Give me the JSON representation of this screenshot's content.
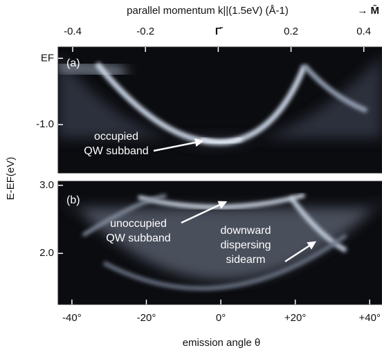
{
  "chart_data": [
    {
      "type": "image",
      "panel_label": "(a)",
      "x2label": "parallel momentum k||(1.5eV)  (Å-1)",
      "x2_direction": "→ M̄",
      "x2lim": [
        -0.44,
        0.45
      ],
      "x2ticks": [
        -0.4,
        -0.2,
        {
          "value": 0,
          "label": "Γ̄"
        },
        0.2,
        0.4
      ],
      "ylabel": "E-EF(eV)",
      "ylim": [
        -1.73,
        0.17
      ],
      "yticks": [
        {
          "value": 0,
          "label": "EF"
        },
        {
          "value": -1,
          "label": "-1.0"
        }
      ],
      "annotations": [
        [
          "occupied",
          "QW subband"
        ]
      ]
    },
    {
      "type": "image",
      "panel_label": "(b)",
      "xlabel": "emission angle θ",
      "xlim": [
        -43.7,
        43.3
      ],
      "xticks": [
        {
          "value": -40,
          "label": "-40°"
        },
        {
          "value": -20,
          "label": "-20°"
        },
        {
          "value": 0,
          "label": "0°"
        },
        {
          "value": 20,
          "label": "+20°"
        },
        {
          "value": 40,
          "label": "+40°"
        }
      ],
      "ylim": [
        1.25,
        3.06
      ],
      "yticks": [
        {
          "value": 3,
          "label": "3.0"
        },
        {
          "value": 2,
          "label": "2.0"
        }
      ],
      "annotations": [
        [
          "unoccupied",
          "QW subband"
        ],
        [
          "downward",
          "dispersing",
          "sidearm"
        ]
      ]
    }
  ]
}
